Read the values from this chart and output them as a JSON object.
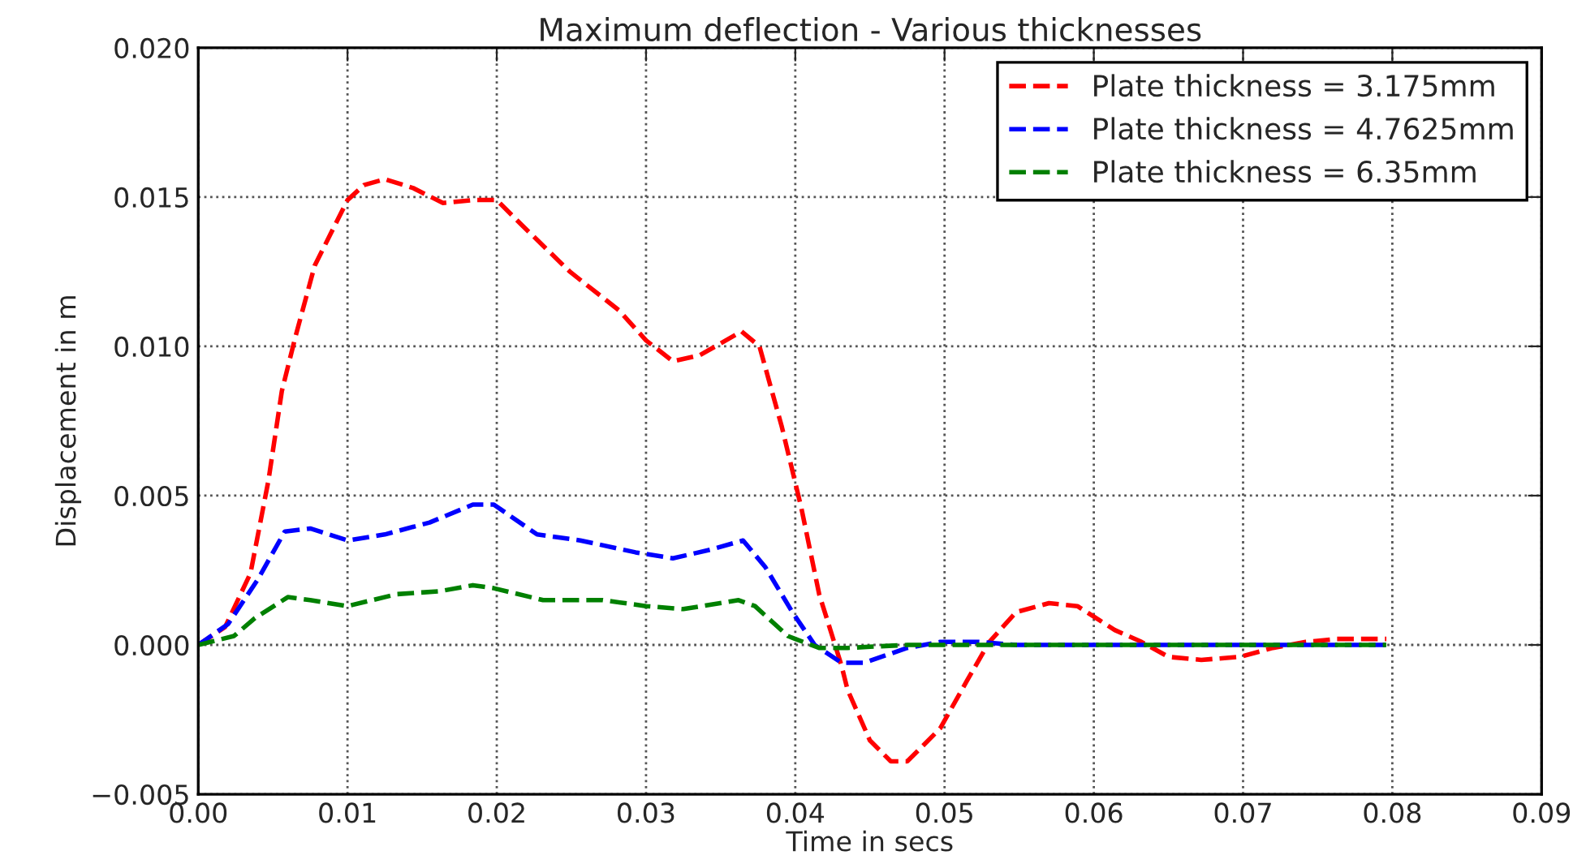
{
  "chart_data": {
    "type": "line",
    "title": "Maximum deflection - Various thicknesses",
    "xlabel": "Time in secs",
    "ylabel": "Displacement in m",
    "xlim": [
      0,
      0.09
    ],
    "xticks": [
      {
        "value": 0,
        "label": "0.00"
      },
      {
        "value": 0.01,
        "label": "0.01"
      },
      {
        "value": 0.02,
        "label": "0.02"
      },
      {
        "value": 0.03,
        "label": "0.03"
      },
      {
        "value": 0.04,
        "label": "0.04"
      },
      {
        "value": 0.05,
        "label": "0.05"
      },
      {
        "value": 0.06,
        "label": "0.06"
      },
      {
        "value": 0.07,
        "label": "0.07"
      },
      {
        "value": 0.08,
        "label": "0.08"
      },
      {
        "value": 0.09,
        "label": "0.09"
      }
    ],
    "ylim": [
      -0.005,
      0.02
    ],
    "yticks": [
      {
        "value": -0.005,
        "label": "−0.005"
      },
      {
        "value": 0,
        "label": "0.000"
      },
      {
        "value": 0.005,
        "label": "0.005"
      },
      {
        "value": 0.01,
        "label": "0.010"
      },
      {
        "value": 0.015,
        "label": "0.015"
      },
      {
        "value": 0.02,
        "label": "0.020"
      }
    ],
    "grid": true,
    "legend": "top right",
    "line_style": "dashed",
    "marker": "none",
    "series": [
      {
        "name": "Plate thickness = 3.175mm",
        "color": "#ff0000",
        "x": [
          0,
          0.0018,
          0.0035,
          0.0047,
          0.0056,
          0.0065,
          0.0078,
          0.0089,
          0.01,
          0.0111,
          0.0125,
          0.0144,
          0.0164,
          0.0184,
          0.02,
          0.0216,
          0.0249,
          0.0282,
          0.03,
          0.0318,
          0.0336,
          0.0364,
          0.0376,
          0.0391,
          0.0404,
          0.0416,
          0.0431,
          0.0435,
          0.045,
          0.0464,
          0.0475,
          0.0497,
          0.0515,
          0.053,
          0.0548,
          0.057,
          0.0589,
          0.0614,
          0.0632,
          0.065,
          0.0672,
          0.0698,
          0.072,
          0.0742,
          0.0763,
          0.0796
        ],
        "values": [
          0,
          0.0006,
          0.0024,
          0.0055,
          0.0085,
          0.0103,
          0.0127,
          0.0138,
          0.0149,
          0.0154,
          0.0156,
          0.0153,
          0.0148,
          0.0149,
          0.0149,
          0.0141,
          0.0125,
          0.0112,
          0.0102,
          0.0095,
          0.0097,
          0.0105,
          0.01,
          0.0073,
          0.0046,
          0.0017,
          -0.0007,
          -0.0015,
          -0.0032,
          -0.0039,
          -0.0039,
          -0.0028,
          -0.0012,
          0.0001,
          0.0011,
          0.0014,
          0.0013,
          0.0005,
          0.0001,
          -0.0004,
          -0.0005,
          -0.0004,
          -0.0001,
          0.0001,
          0.0002,
          0.0002
        ]
      },
      {
        "name": "Plate thickness = 4.7625mm",
        "color": "#0000ff",
        "x": [
          0,
          0.002,
          0.004,
          0.0058,
          0.0075,
          0.01,
          0.0125,
          0.0155,
          0.0184,
          0.0198,
          0.0227,
          0.0256,
          0.0293,
          0.0318,
          0.0344,
          0.0365,
          0.038,
          0.0398,
          0.0413,
          0.0431,
          0.0446,
          0.0475,
          0.0497,
          0.0523,
          0.0548,
          0.0796
        ],
        "values": [
          0,
          0.0007,
          0.0022,
          0.0038,
          0.0039,
          0.0035,
          0.0037,
          0.0041,
          0.0047,
          0.0047,
          0.0037,
          0.0035,
          0.0031,
          0.0029,
          0.0032,
          0.0035,
          0.0026,
          0.0011,
          0,
          -0.0006,
          -0.0006,
          -0.0001,
          0.0001,
          0.0001,
          0,
          0
        ]
      },
      {
        "name": "Plate thickness = 6.35mm",
        "color": "#008000",
        "x": [
          0,
          0.0024,
          0.0038,
          0.006,
          0.0075,
          0.01,
          0.0133,
          0.0162,
          0.0184,
          0.0198,
          0.0231,
          0.0271,
          0.03,
          0.0325,
          0.0362,
          0.0373,
          0.0395,
          0.04,
          0.0416,
          0.0435,
          0.0475,
          0.0796
        ],
        "values": [
          0,
          0.0003,
          0.0009,
          0.0016,
          0.0015,
          0.0013,
          0.0017,
          0.0018,
          0.002,
          0.0019,
          0.0015,
          0.0015,
          0.0013,
          0.0012,
          0.0015,
          0.0013,
          0.0003,
          0.0002,
          -0.0001,
          -0.0001,
          0,
          0
        ]
      }
    ]
  }
}
